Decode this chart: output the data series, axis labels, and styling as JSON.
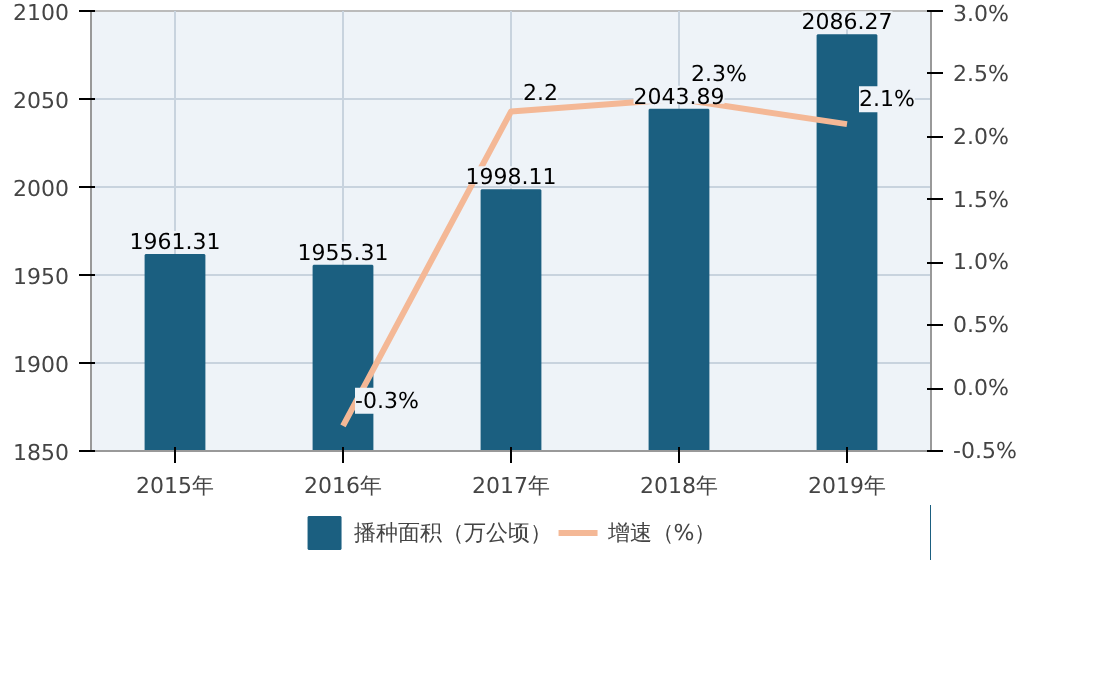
{
  "chart_data": {
    "type": "bar",
    "categories": [
      "2015年",
      "2016年",
      "2017年",
      "2018年",
      "2019年"
    ],
    "ylim": [
      1850,
      2100
    ],
    "yticks": [
      1850,
      1900,
      1950,
      2000,
      2050,
      2100
    ],
    "y2lim": [
      -0.5,
      3.0
    ],
    "y2ticks": [
      {
        "value": -0.5,
        "label": "-0.5%"
      },
      {
        "value": 0.0,
        "label": "0.0%"
      },
      {
        "value": 0.5,
        "label": "0.5%"
      },
      {
        "value": 1.0,
        "label": "1.0%"
      },
      {
        "value": 1.5,
        "label": "1.5%"
      },
      {
        "value": 2.0,
        "label": "2.0%"
      },
      {
        "value": 2.5,
        "label": "2.5%"
      },
      {
        "value": 3.0,
        "label": "3.0%"
      }
    ],
    "grid": true,
    "legend": "bottom",
    "series": [
      {
        "name": "播种面积（万公顷）",
        "color": "#1b5f80",
        "values": [
          1961.31,
          1955.31,
          1998.11,
          2043.89,
          2086.27
        ],
        "value_labels": [
          "1961.31",
          "1955.31",
          "1998.11",
          "2043.89",
          "2086.27"
        ]
      },
      {
        "name": "增速（%）",
        "type": "line",
        "axis": "y2",
        "color": "#f4b896",
        "line_style": "solid",
        "marker": "none",
        "values": [
          null,
          -0.3,
          2.2,
          2.3,
          2.1
        ],
        "value_labels": [
          null,
          "-0.3%",
          "2.2",
          "2.3%",
          "2.1%"
        ]
      }
    ]
  }
}
